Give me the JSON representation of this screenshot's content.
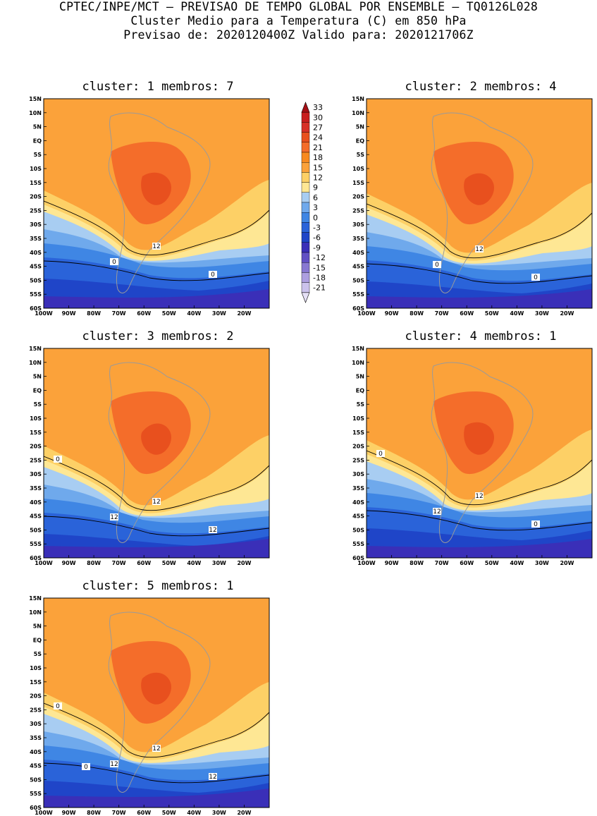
{
  "header": {
    "line1": "CPTEC/INPE/MCT – PREVISAO DE TEMPO GLOBAL POR ENSEMBLE – TQ0126L028",
    "line2": "Cluster Medio para a Temperatura (C) em 850 hPa",
    "line3": "Previsao de: 2020120400Z   Valido para: 2020121706Z"
  },
  "panels": [
    {
      "cluster_label": "cluster:",
      "cluster": "1",
      "members_label": "membros:",
      "members": "7",
      "contour_labels": [
        "12",
        "0",
        "0"
      ]
    },
    {
      "cluster_label": "cluster:",
      "cluster": "2",
      "members_label": "membros:",
      "members": "4",
      "contour_labels": [
        "12",
        "0",
        "0"
      ]
    },
    {
      "cluster_label": "cluster:",
      "cluster": "3",
      "members_label": "membros:",
      "members": "2",
      "contour_labels": [
        "12",
        "12",
        "12",
        "0"
      ]
    },
    {
      "cluster_label": "cluster:",
      "cluster": "4",
      "members_label": "membros:",
      "members": "1",
      "contour_labels": [
        "12",
        "12",
        "0",
        "0"
      ]
    },
    {
      "cluster_label": "cluster:",
      "cluster": "5",
      "members_label": "membros:",
      "members": "1",
      "contour_labels": [
        "12",
        "12",
        "12",
        "0",
        "0"
      ]
    }
  ],
  "axes": {
    "lat_labels": [
      "15N",
      "10N",
      "5N",
      "EQ",
      "5S",
      "10S",
      "15S",
      "20S",
      "25S",
      "30S",
      "35S",
      "40S",
      "45S",
      "50S",
      "55S",
      "60S"
    ],
    "lon_labels": [
      "100W",
      "90W",
      "80W",
      "70W",
      "60W",
      "50W",
      "40W",
      "30W",
      "20W"
    ]
  },
  "colorbar": {
    "levels": [
      "33",
      "30",
      "27",
      "24",
      "21",
      "18",
      "15",
      "12",
      "9",
      "6",
      "3",
      "0",
      "-3",
      "-6",
      "-9",
      "-12",
      "-15",
      "-18",
      "-21"
    ],
    "colors": [
      "#a50f15",
      "#c81e1e",
      "#d73027",
      "#e8501e",
      "#f46d2a",
      "#f88a1f",
      "#fba23a",
      "#fdd066",
      "#fee794",
      "#a8cdf2",
      "#6fa9ec",
      "#3f86e4",
      "#2a63d9",
      "#1f45c8",
      "#3a2fb8",
      "#6150c4",
      "#8878d2",
      "#ad9fe0",
      "#cbc2ec",
      "#e5e0f6"
    ]
  }
}
